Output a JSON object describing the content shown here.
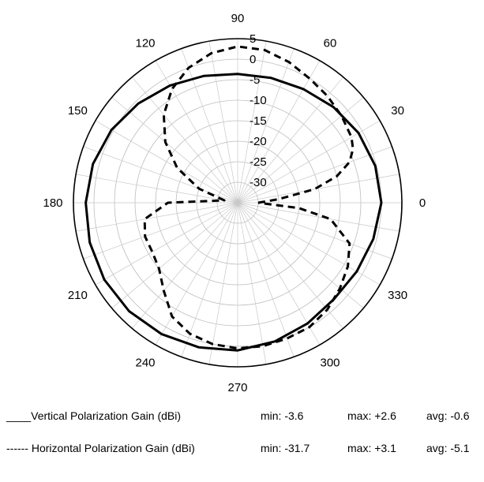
{
  "chart_data": {
    "type": "polar",
    "angle_unit": "degrees",
    "radial_unit": "dBi",
    "radial_range": [
      -35,
      5
    ],
    "radial_ticks": [
      "5",
      "0",
      "-5",
      "-10",
      "-15",
      "-20",
      "-25",
      "-30"
    ],
    "angle_ticks": [
      "0",
      "30",
      "60",
      "90",
      "120",
      "150",
      "180",
      "210",
      "240",
      "270",
      "300",
      "330"
    ],
    "grid": true,
    "series": [
      {
        "name": "Vertical Polarization Gain (dBi)",
        "style": "solid",
        "color": "#000000",
        "theta": [
          0,
          15,
          30,
          45,
          60,
          75,
          90,
          105,
          120,
          135,
          150,
          165,
          180,
          195,
          210,
          225,
          240,
          255,
          270,
          285,
          300,
          315,
          330,
          345,
          360
        ],
        "r": [
          0.0,
          -0.3,
          -1.0,
          -2.0,
          -3.0,
          -3.5,
          -3.6,
          -3.0,
          -2.0,
          -0.8,
          0.5,
          1.5,
          2.0,
          2.3,
          2.5,
          2.4,
          2.0,
          1.5,
          1.0,
          0.0,
          -1.0,
          -1.8,
          -1.5,
          -0.8,
          0.0
        ],
        "min": "-3.6",
        "max": "+2.6",
        "avg": "-0.6"
      },
      {
        "name": "Horizontal Polarization Gain (dBi)",
        "style": "dashed",
        "color": "#000000",
        "theta": [
          0,
          5,
          10,
          15,
          20,
          25,
          30,
          40,
          50,
          60,
          70,
          80,
          90,
          100,
          110,
          120,
          130,
          140,
          150,
          160,
          170,
          180,
          190,
          200,
          210,
          220,
          230,
          240,
          250,
          260,
          270,
          280,
          290,
          300,
          310,
          320,
          330,
          340,
          350,
          355,
          360
        ],
        "r": [
          -30,
          -25,
          -16,
          -10,
          -6,
          -4,
          -3,
          -2,
          -1,
          0,
          1.5,
          2.8,
          3.1,
          2.0,
          0,
          -3,
          -7,
          -12,
          -18,
          -25,
          -31.7,
          -18,
          -12,
          -11,
          -11,
          -10,
          -7,
          -3,
          -1,
          0,
          0.5,
          0.5,
          0.2,
          0,
          -1,
          -2.5,
          -4,
          -6,
          -12,
          -20,
          -30
        ],
        "min": "-31.7",
        "max": "+3.1",
        "avg": "-5.1"
      }
    ],
    "legend": [
      {
        "marker": "____",
        "label": "Vertical Polarization Gain (dBi)",
        "min": "min: -3.6",
        "max": "max: +2.6",
        "avg": "avg: -0.6"
      },
      {
        "marker": "------",
        "label": "Horizontal Polarization Gain (dBi)",
        "min": "min: -31.7",
        "max": "max: +3.1",
        "avg": "avg: -5.1"
      }
    ]
  }
}
